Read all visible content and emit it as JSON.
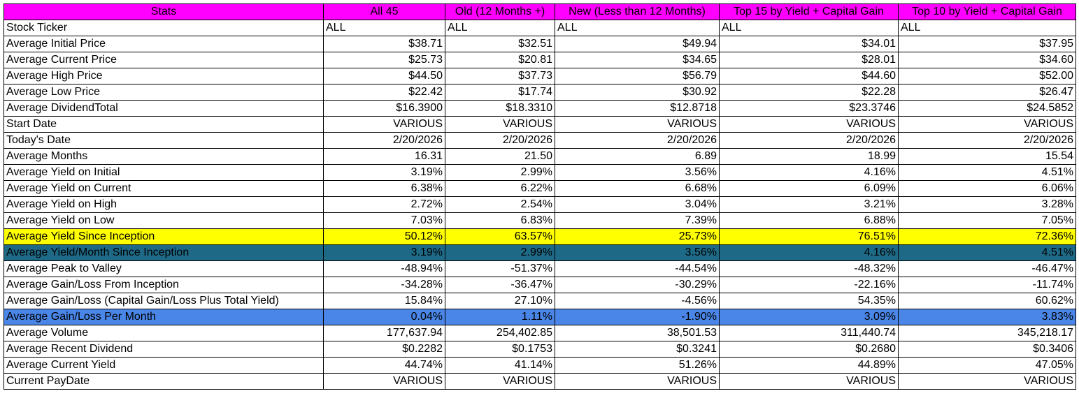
{
  "colors": {
    "header_bg": "#ff00ff",
    "highlight_yellow": "#ffff00",
    "highlight_teal": "#1e6a86",
    "highlight_blue": "#4a86e8"
  },
  "header": {
    "stats": "Stats",
    "columns": [
      "All 45",
      "Old (12 Months +)",
      "New (Less than 12 Months)",
      "Top 15 by Yield + Capital Gain",
      "Top 10 by Yield + Capital Gain"
    ]
  },
  "rows": [
    {
      "label": "Stock Ticker",
      "values": [
        "ALL",
        "ALL",
        "ALL",
        "ALL",
        "ALL"
      ],
      "align": "left",
      "style": ""
    },
    {
      "label": "Average Initial Price",
      "values": [
        "$38.71",
        "$32.51",
        "$49.94",
        "$34.01",
        "$37.95"
      ],
      "align": "right",
      "style": ""
    },
    {
      "label": "Average Current Price",
      "values": [
        "$25.73",
        "$20.81",
        "$34.65",
        "$28.01",
        "$34.60"
      ],
      "align": "right",
      "style": ""
    },
    {
      "label": "Average High Price",
      "values": [
        "$44.50",
        "$37.73",
        "$56.79",
        "$44.60",
        "$52.00"
      ],
      "align": "right",
      "style": ""
    },
    {
      "label": "Average Low Price",
      "values": [
        "$22.42",
        "$17.74",
        "$30.92",
        "$22.28",
        "$26.47"
      ],
      "align": "right",
      "style": ""
    },
    {
      "label": "Average DividendTotal",
      "values": [
        "$16.3900",
        "$18.3310",
        "$12.8718",
        "$23.3746",
        "$24.5852"
      ],
      "align": "right",
      "style": ""
    },
    {
      "label": "Start Date",
      "values": [
        "VARIOUS",
        "VARIOUS",
        "VARIOUS",
        "VARIOUS",
        "VARIOUS"
      ],
      "align": "right",
      "style": ""
    },
    {
      "label": "Today's Date",
      "values": [
        "2/20/2026",
        "2/20/2026",
        "2/20/2026",
        "2/20/2026",
        "2/20/2026"
      ],
      "align": "right",
      "style": ""
    },
    {
      "label": "Average Months",
      "values": [
        "16.31",
        "21.50",
        "6.89",
        "18.99",
        "15.54"
      ],
      "align": "right",
      "style": ""
    },
    {
      "label": "Average Yield on Initial",
      "values": [
        "3.19%",
        "2.99%",
        "3.56%",
        "4.16%",
        "4.51%"
      ],
      "align": "right",
      "style": ""
    },
    {
      "label": "Average Yield on Current",
      "values": [
        "6.38%",
        "6.22%",
        "6.68%",
        "6.09%",
        "6.06%"
      ],
      "align": "right",
      "style": ""
    },
    {
      "label": "Average Yield on High",
      "values": [
        "2.72%",
        "2.54%",
        "3.04%",
        "3.21%",
        "3.28%"
      ],
      "align": "right",
      "style": ""
    },
    {
      "label": "Average Yield on Low",
      "values": [
        "7.03%",
        "6.83%",
        "7.39%",
        "6.88%",
        "7.05%"
      ],
      "align": "right",
      "style": ""
    },
    {
      "label": "Average Yield Since Inception",
      "values": [
        "50.12%",
        "63.57%",
        "25.73%",
        "76.51%",
        "72.36%"
      ],
      "align": "right",
      "style": "yellow"
    },
    {
      "label": "Average Yield/Month Since Inception",
      "values": [
        "3.19%",
        "2.99%",
        "3.56%",
        "4.16%",
        "4.51%"
      ],
      "align": "right",
      "style": "teal"
    },
    {
      "label": "Average Peak to Valley",
      "values": [
        "-48.94%",
        "-51.37%",
        "-44.54%",
        "-48.32%",
        "-46.47%"
      ],
      "align": "right",
      "style": ""
    },
    {
      "label": "Average Gain/Loss From Inception",
      "values": [
        "-34.28%",
        "-36.47%",
        "-30.29%",
        "-22.16%",
        "-11.74%"
      ],
      "align": "right",
      "style": ""
    },
    {
      "label": "Average Gain/Loss (Capital Gain/Loss Plus Total Yield)",
      "values": [
        "15.84%",
        "27.10%",
        "-4.56%",
        "54.35%",
        "60.62%"
      ],
      "align": "right",
      "style": ""
    },
    {
      "label": "Average Gain/Loss Per Month",
      "values": [
        "0.04%",
        "1.11%",
        "-1.90%",
        "3.09%",
        "3.83%"
      ],
      "align": "right",
      "style": "blue"
    },
    {
      "label": "Average Volume",
      "values": [
        "177,637.94",
        "254,402.85",
        "38,501.53",
        "311,440.74",
        "345,218.17"
      ],
      "align": "right",
      "style": ""
    },
    {
      "label": "Average Recent Dividend",
      "values": [
        "$0.2282",
        "$0.1753",
        "$0.3241",
        "$0.2680",
        "$0.3406"
      ],
      "align": "right",
      "style": ""
    },
    {
      "label": "Average Current Yield",
      "values": [
        "44.74%",
        "41.14%",
        "51.26%",
        "44.89%",
        "47.05%"
      ],
      "align": "right",
      "style": ""
    },
    {
      "label": "Current PayDate",
      "values": [
        "VARIOUS",
        "VARIOUS",
        "VARIOUS",
        "VARIOUS",
        "VARIOUS"
      ],
      "align": "right",
      "style": ""
    }
  ]
}
